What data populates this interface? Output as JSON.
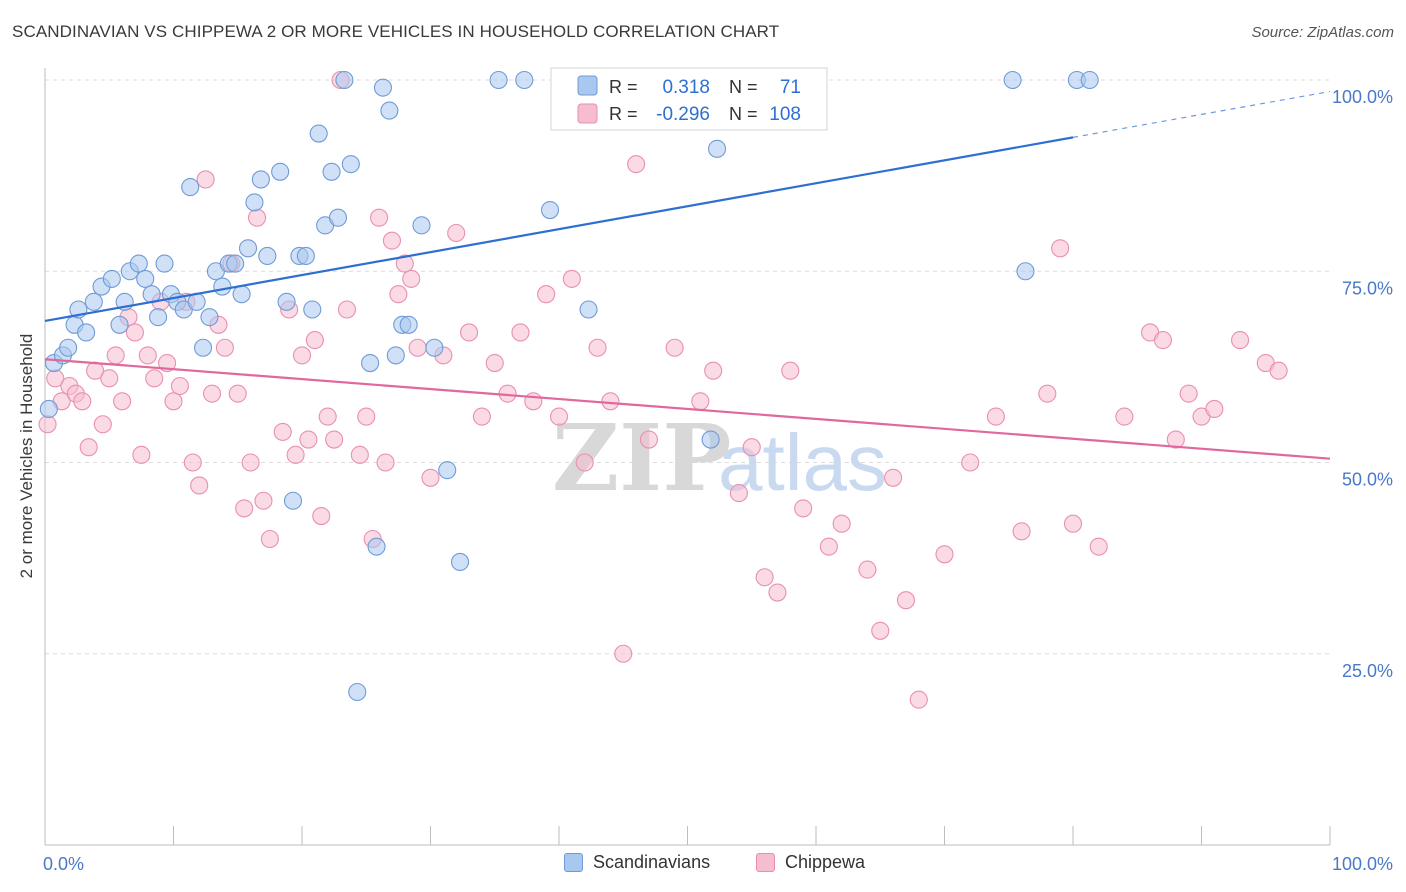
{
  "title": "SCANDINAVIAN VS CHIPPEWA 2 OR MORE VEHICLES IN HOUSEHOLD CORRELATION CHART",
  "source": "Source: ZipAtlas.com",
  "watermark": {
    "zip": "ZIP",
    "atlas": "atlas"
  },
  "colors": {
    "blue_fill": "#a9c8f0",
    "blue_stroke": "#6f9bd6",
    "blue_line": "#2e6fd1",
    "pink_fill": "#f6bcd0",
    "pink_stroke": "#ea8fb0",
    "pink_line": "#e0689a",
    "axis_label": "#4a78c8",
    "grid": "#dcdcdc"
  },
  "stats_box": {
    "rows": [
      {
        "r_label": "R =",
        "r_value": "0.318",
        "n_label": "N =",
        "n_value": "71"
      },
      {
        "r_label": "R =",
        "r_value": "-0.296",
        "n_label": "N =",
        "n_value": "108"
      }
    ]
  },
  "legend": {
    "items": [
      "Scandinavians",
      "Chippewa"
    ]
  },
  "chart_data": {
    "type": "scatter",
    "title": "SCANDINAVIAN VS CHIPPEWA 2 OR MORE VEHICLES IN HOUSEHOLD CORRELATION CHART",
    "xlabel": "",
    "ylabel": "2 or more Vehicles in Household",
    "xlim": [
      0,
      100
    ],
    "ylim": [
      0,
      100
    ],
    "x_tick_labels": [
      "0.0%",
      "100.0%"
    ],
    "y_tick_labels": [
      {
        "value": 100,
        "label": "100.0%"
      },
      {
        "value": 75,
        "label": "75.0%"
      },
      {
        "value": 50,
        "label": "50.0%"
      },
      {
        "value": 25,
        "label": "25.0%"
      }
    ],
    "grid": true,
    "legend_position": "bottom-center",
    "series": [
      {
        "name": "Scandinavians",
        "r": 0.318,
        "n": 71,
        "trend": {
          "x0": 0,
          "y0": 68.5,
          "x1": 80,
          "y1": 92.5,
          "dashed_to_x": 100,
          "dashed_to_y": 98.5
        },
        "points": [
          [
            0.3,
            57
          ],
          [
            0.7,
            63
          ],
          [
            1.4,
            64
          ],
          [
            1.8,
            65
          ],
          [
            2.3,
            68
          ],
          [
            2.6,
            70
          ],
          [
            3.2,
            67
          ],
          [
            3.8,
            71
          ],
          [
            4.4,
            73
          ],
          [
            5.2,
            74
          ],
          [
            5.8,
            68
          ],
          [
            6.2,
            71
          ],
          [
            6.6,
            75
          ],
          [
            7.3,
            76
          ],
          [
            7.8,
            74
          ],
          [
            8.3,
            72
          ],
          [
            8.8,
            69
          ],
          [
            9.3,
            76
          ],
          [
            9.8,
            72
          ],
          [
            10.3,
            71
          ],
          [
            10.8,
            70
          ],
          [
            11.3,
            86
          ],
          [
            11.8,
            71
          ],
          [
            12.3,
            65
          ],
          [
            12.8,
            69
          ],
          [
            13.3,
            75
          ],
          [
            13.8,
            73
          ],
          [
            14.3,
            76
          ],
          [
            14.8,
            76
          ],
          [
            15.3,
            72
          ],
          [
            15.8,
            78
          ],
          [
            16.3,
            84
          ],
          [
            16.8,
            87
          ],
          [
            17.3,
            77
          ],
          [
            18.3,
            88
          ],
          [
            18.8,
            71
          ],
          [
            19.3,
            45
          ],
          [
            19.8,
            77
          ],
          [
            20.3,
            77
          ],
          [
            20.8,
            70
          ],
          [
            21.3,
            93
          ],
          [
            21.8,
            81
          ],
          [
            22.3,
            88
          ],
          [
            22.8,
            82
          ],
          [
            23.3,
            100
          ],
          [
            23.8,
            89
          ],
          [
            24.3,
            20
          ],
          [
            25.3,
            63
          ],
          [
            25.8,
            39
          ],
          [
            26.3,
            99
          ],
          [
            26.8,
            96
          ],
          [
            27.3,
            64
          ],
          [
            27.8,
            68
          ],
          [
            28.3,
            68
          ],
          [
            29.3,
            81
          ],
          [
            30.3,
            65
          ],
          [
            31.3,
            49
          ],
          [
            32.3,
            37
          ],
          [
            35.3,
            100
          ],
          [
            37.3,
            100
          ],
          [
            39.3,
            83
          ],
          [
            42.3,
            70
          ],
          [
            43.3,
            100
          ],
          [
            47.3,
            100
          ],
          [
            51.3,
            100
          ],
          [
            51.8,
            53
          ],
          [
            52.3,
            91
          ],
          [
            75.3,
            100
          ],
          [
            76.3,
            75
          ],
          [
            80.3,
            100
          ],
          [
            81.3,
            100
          ]
        ]
      },
      {
        "name": "Chippewa",
        "r": -0.296,
        "n": 108,
        "trend": {
          "x0": 0,
          "y0": 63.5,
          "x1": 100,
          "y1": 50.5
        },
        "points": [
          [
            0.2,
            55
          ],
          [
            0.8,
            61
          ],
          [
            1.3,
            58
          ],
          [
            1.9,
            60
          ],
          [
            2.4,
            59
          ],
          [
            2.9,
            58
          ],
          [
            3.4,
            52
          ],
          [
            3.9,
            62
          ],
          [
            4.5,
            55
          ],
          [
            5.0,
            61
          ],
          [
            5.5,
            64
          ],
          [
            6.0,
            58
          ],
          [
            6.5,
            69
          ],
          [
            7.0,
            67
          ],
          [
            7.5,
            51
          ],
          [
            8.0,
            64
          ],
          [
            8.5,
            61
          ],
          [
            9.0,
            71
          ],
          [
            9.5,
            63
          ],
          [
            10.0,
            58
          ],
          [
            10.5,
            60
          ],
          [
            11.0,
            71
          ],
          [
            11.5,
            50
          ],
          [
            12.0,
            47
          ],
          [
            12.5,
            87
          ],
          [
            13.0,
            59
          ],
          [
            13.5,
            68
          ],
          [
            14.0,
            65
          ],
          [
            14.5,
            76
          ],
          [
            15.0,
            59
          ],
          [
            15.5,
            44
          ],
          [
            16.0,
            50
          ],
          [
            16.5,
            82
          ],
          [
            17.0,
            45
          ],
          [
            17.5,
            40
          ],
          [
            18.5,
            54
          ],
          [
            19.0,
            70
          ],
          [
            19.5,
            51
          ],
          [
            20.0,
            64
          ],
          [
            20.5,
            53
          ],
          [
            21.0,
            66
          ],
          [
            21.5,
            43
          ],
          [
            22.0,
            56
          ],
          [
            22.5,
            53
          ],
          [
            23.0,
            100
          ],
          [
            23.5,
            70
          ],
          [
            24.5,
            51
          ],
          [
            25.0,
            56
          ],
          [
            25.5,
            40
          ],
          [
            26.0,
            82
          ],
          [
            26.5,
            50
          ],
          [
            27.0,
            79
          ],
          [
            27.5,
            72
          ],
          [
            28.0,
            76
          ],
          [
            28.5,
            74
          ],
          [
            29.0,
            65
          ],
          [
            30.0,
            48
          ],
          [
            31.0,
            64
          ],
          [
            32.0,
            80
          ],
          [
            33.0,
            67
          ],
          [
            34.0,
            56
          ],
          [
            35.0,
            63
          ],
          [
            36.0,
            59
          ],
          [
            37.0,
            67
          ],
          [
            38.0,
            58
          ],
          [
            39.0,
            72
          ],
          [
            40.0,
            56
          ],
          [
            41.0,
            74
          ],
          [
            42.0,
            50
          ],
          [
            43.0,
            65
          ],
          [
            44.0,
            58
          ],
          [
            45.0,
            25
          ],
          [
            46.0,
            89
          ],
          [
            47.0,
            53
          ],
          [
            49.0,
            65
          ],
          [
            51.0,
            58
          ],
          [
            52.0,
            62
          ],
          [
            54.0,
            46
          ],
          [
            55.0,
            52
          ],
          [
            56.0,
            35
          ],
          [
            57.0,
            33
          ],
          [
            58.0,
            62
          ],
          [
            59.0,
            44
          ],
          [
            61.0,
            39
          ],
          [
            62.0,
            42
          ],
          [
            64.0,
            36
          ],
          [
            65.0,
            28
          ],
          [
            66.0,
            48
          ],
          [
            67.0,
            32
          ],
          [
            68.0,
            19
          ],
          [
            70.0,
            38
          ],
          [
            72.0,
            50
          ],
          [
            74.0,
            56
          ],
          [
            76.0,
            41
          ],
          [
            78.0,
            59
          ],
          [
            79.0,
            78
          ],
          [
            80.0,
            42
          ],
          [
            82.0,
            39
          ],
          [
            84.0,
            56
          ],
          [
            86.0,
            67
          ],
          [
            87.0,
            66
          ],
          [
            88.0,
            53
          ],
          [
            89.0,
            59
          ],
          [
            90.0,
            56
          ],
          [
            91.0,
            57
          ],
          [
            93.0,
            66
          ],
          [
            95.0,
            63
          ],
          [
            96.0,
            62
          ]
        ]
      }
    ]
  }
}
